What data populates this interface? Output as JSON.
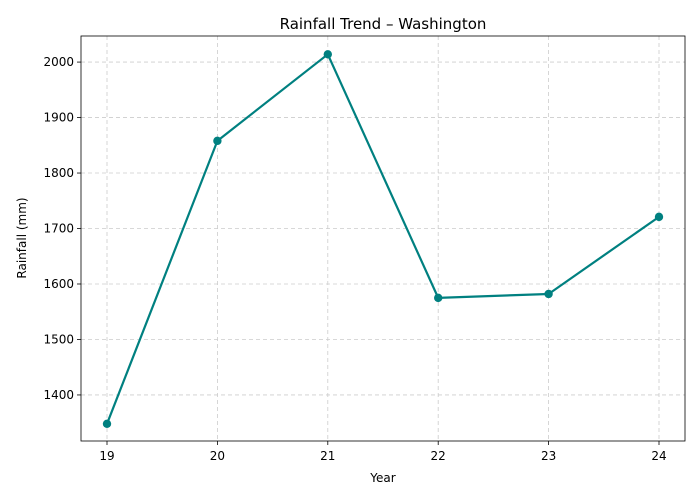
{
  "chart_data": {
    "type": "line",
    "title": "Rainfall Trend – Washington",
    "xlabel": "Year",
    "ylabel": "Rainfall (mm)",
    "x": [
      "19",
      "20",
      "21",
      "22",
      "23",
      "24"
    ],
    "series": [
      {
        "values": [
          1348,
          1858,
          2014,
          1575,
          1582,
          1721
        ]
      }
    ],
    "ylim": [
      1317,
      2047
    ],
    "yticks": [
      1400,
      1500,
      1600,
      1700,
      1800,
      1900,
      2000
    ],
    "grid": true,
    "line_color": "#008080",
    "marker": "circle"
  }
}
